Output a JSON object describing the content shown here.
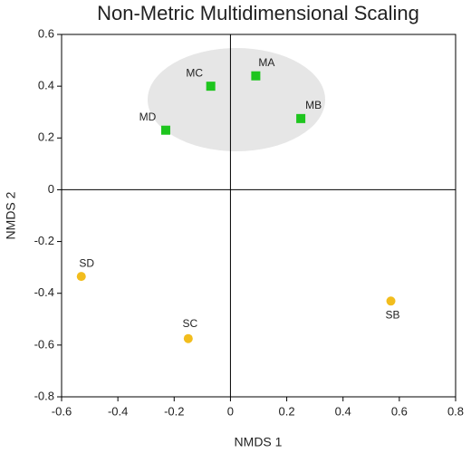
{
  "chart_data": {
    "type": "scatter",
    "title": "Non-Metric Multidimensional Scaling",
    "x_label": "NMDS 1",
    "y_label": "NMDS 2",
    "xlim": [
      -0.6,
      0.8
    ],
    "ylim": [
      -0.8,
      0.6
    ],
    "xticks": [
      -0.6,
      -0.4,
      -0.2,
      0,
      0.2,
      0.4,
      0.6,
      0.8
    ],
    "yticks": [
      -0.8,
      -0.6,
      -0.4,
      -0.2,
      0,
      0.2,
      0.4,
      0.6
    ],
    "series": [
      {
        "marker": "square",
        "color": "#1ec51e",
        "labels": [
          "MA",
          "MB",
          "MC",
          "MD"
        ],
        "x": [
          0.09,
          0.25,
          -0.07,
          -0.23
        ],
        "values": [
          0.44,
          0.275,
          0.4,
          0.23
        ]
      },
      {
        "marker": "circle",
        "color": "#f2bd1d",
        "labels": [
          "SD",
          "SC",
          "SB"
        ],
        "x": [
          -0.53,
          -0.15,
          0.57
        ],
        "values": [
          -0.335,
          -0.575,
          -0.43
        ]
      }
    ]
  }
}
